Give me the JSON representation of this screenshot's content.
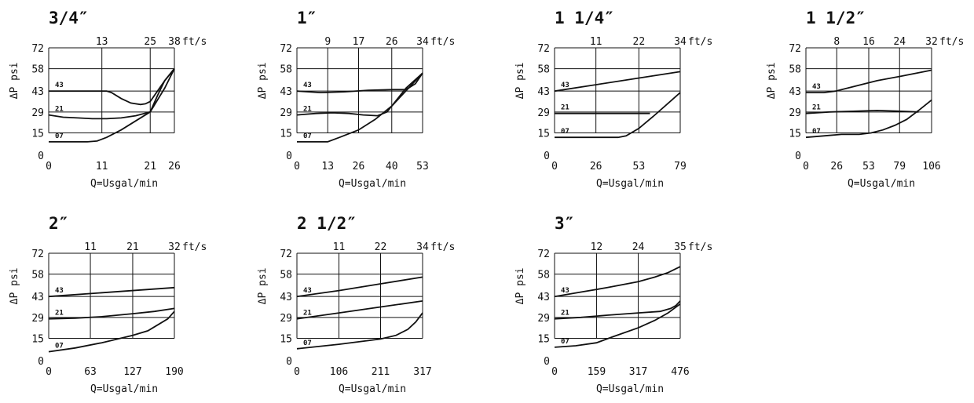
{
  "chart_data": [
    {
      "type": "line",
      "title": "3/4″",
      "xlabel": "Q=Usgal/min",
      "ylabel": "ΔP psi",
      "x_ticks": [
        "0",
        "11",
        "21",
        "26"
      ],
      "x_values": [
        0,
        11,
        21,
        26
      ],
      "top_ticks": [
        "13",
        "25",
        "38"
      ],
      "top_unit": "ft/s",
      "y_ticks": [
        "0",
        "15",
        "29",
        "43",
        "58",
        "72"
      ],
      "xlim": [
        0,
        26
      ],
      "ylim": [
        0,
        72
      ],
      "series": [
        {
          "name": "43",
          "x": [
            0,
            4,
            8,
            12,
            13,
            15,
            17,
            19,
            20,
            21,
            22.5,
            24,
            26
          ],
          "y": [
            43,
            43,
            43,
            43,
            42,
            38,
            35,
            34,
            34.5,
            36,
            43,
            50,
            58
          ]
        },
        {
          "name": "21",
          "x": [
            0,
            3,
            6,
            9,
            12,
            15,
            18,
            21,
            22.5,
            24,
            26
          ],
          "y": [
            27,
            25.5,
            25,
            24.5,
            24.5,
            25,
            26.5,
            29,
            40,
            50,
            58
          ]
        },
        {
          "name": "07",
          "x": [
            0,
            4,
            8,
            10,
            12,
            15,
            18,
            21,
            24,
            26
          ],
          "y": [
            9,
            9,
            9,
            9.5,
            12,
            17,
            23,
            29,
            45,
            58
          ]
        }
      ]
    },
    {
      "type": "line",
      "title": "1″",
      "xlabel": "Q=Usgal/min",
      "ylabel": "ΔP psi",
      "x_ticks": [
        "0",
        "13",
        "26",
        "40",
        "53"
      ],
      "x_values": [
        0,
        13,
        26,
        40,
        53
      ],
      "top_ticks": [
        "9",
        "17",
        "26",
        "34"
      ],
      "top_unit": "ft/s",
      "y_ticks": [
        "0",
        "15",
        "29",
        "43",
        "58",
        "72"
      ],
      "xlim": [
        0,
        53
      ],
      "ylim": [
        0,
        72
      ],
      "series": [
        {
          "name": "43",
          "x": [
            0,
            10,
            20,
            30,
            40,
            46,
            50,
            53
          ],
          "y": [
            43,
            42,
            42.5,
            43.5,
            44,
            44,
            48,
            55
          ]
        },
        {
          "name": "21",
          "x": [
            0,
            8,
            15,
            22,
            28,
            34,
            38,
            46,
            53
          ],
          "y": [
            27,
            28,
            28.5,
            28,
            27,
            26.5,
            29,
            45,
            55
          ]
        },
        {
          "name": "07",
          "x": [
            0,
            5,
            10,
            13,
            18,
            26,
            33,
            40,
            53
          ],
          "y": [
            9,
            9,
            9,
            9,
            12,
            17,
            24,
            33,
            55
          ]
        }
      ]
    },
    {
      "type": "line",
      "title": "1 1/4″",
      "xlabel": "Q=Usgal/min",
      "ylabel": "ΔP psi",
      "x_ticks": [
        "0",
        "26",
        "53",
        "79"
      ],
      "x_values": [
        0,
        26,
        53,
        79
      ],
      "top_ticks": [
        "11",
        "22",
        "34"
      ],
      "top_unit": "ft/s",
      "y_ticks": [
        "0",
        "15",
        "29",
        "43",
        "58",
        "72"
      ],
      "xlim": [
        0,
        79
      ],
      "ylim": [
        0,
        72
      ],
      "series": [
        {
          "name": "43",
          "x": [
            0,
            79
          ],
          "y": [
            43,
            56
          ]
        },
        {
          "name": "21",
          "x": [
            0,
            30,
            60
          ],
          "y": [
            28,
            28,
            28
          ]
        },
        {
          "name": "07",
          "x": [
            0,
            20,
            40,
            45,
            53,
            62,
            79
          ],
          "y": [
            12,
            12,
            12,
            13,
            18,
            26,
            42
          ]
        }
      ]
    },
    {
      "type": "line",
      "title": "1 1/2″",
      "xlabel": "Q=Usgal/min",
      "ylabel": "ΔP psi",
      "x_ticks": [
        "0",
        "26",
        "53",
        "79",
        "106"
      ],
      "x_values": [
        0,
        26,
        53,
        79,
        106
      ],
      "top_ticks": [
        "8",
        "16",
        "24",
        "32"
      ],
      "top_unit": "ft/s",
      "y_ticks": [
        "0",
        "15",
        "29",
        "43",
        "58",
        "72"
      ],
      "xlim": [
        0,
        106
      ],
      "ylim": [
        0,
        72
      ],
      "series": [
        {
          "name": "43",
          "x": [
            0,
            15,
            25,
            40,
            60,
            80,
            106
          ],
          "y": [
            42,
            42,
            43,
            46,
            50,
            53,
            57
          ]
        },
        {
          "name": "21",
          "x": [
            0,
            20,
            40,
            60,
            80,
            95
          ],
          "y": [
            28,
            29,
            29.5,
            30,
            29.5,
            29
          ]
        },
        {
          "name": "07",
          "x": [
            0,
            15,
            30,
            45,
            55,
            65,
            75,
            85,
            95,
            106
          ],
          "y": [
            12,
            13,
            14,
            14,
            15,
            17,
            20,
            24,
            30,
            37
          ]
        }
      ]
    },
    {
      "type": "line",
      "title": "2″",
      "xlabel": "Q=Usgal/min",
      "ylabel": "ΔP psi",
      "x_ticks": [
        "0",
        "63",
        "127",
        "190"
      ],
      "x_values": [
        0,
        63,
        127,
        190
      ],
      "top_ticks": [
        "11",
        "21",
        "32"
      ],
      "top_unit": "ft/s",
      "y_ticks": [
        "0",
        "15",
        "29",
        "43",
        "58",
        "72"
      ],
      "xlim": [
        0,
        190
      ],
      "ylim": [
        0,
        72
      ],
      "series": [
        {
          "name": "43",
          "x": [
            0,
            190
          ],
          "y": [
            43,
            49
          ]
        },
        {
          "name": "21",
          "x": [
            0,
            40,
            80,
            127,
            160,
            190
          ],
          "y": [
            28,
            28.5,
            29.5,
            31.5,
            33,
            35
          ]
        },
        {
          "name": "07",
          "x": [
            0,
            40,
            80,
            127,
            150,
            165,
            180,
            190
          ],
          "y": [
            6,
            8.5,
            12,
            17,
            20,
            24,
            28,
            33
          ]
        }
      ]
    },
    {
      "type": "line",
      "title": "2 1/2″",
      "xlabel": "Q=Usgal/min",
      "ylabel": "ΔP psi",
      "x_ticks": [
        "0",
        "106",
        "211",
        "317"
      ],
      "x_values": [
        0,
        106,
        211,
        317
      ],
      "top_ticks": [
        "11",
        "22",
        "34"
      ],
      "top_unit": "ft/s",
      "y_ticks": [
        "0",
        "15",
        "29",
        "43",
        "58",
        "72"
      ],
      "xlim": [
        0,
        317
      ],
      "ylim": [
        0,
        72
      ],
      "series": [
        {
          "name": "43",
          "x": [
            0,
            106,
            211,
            317
          ],
          "y": [
            43,
            47,
            51.5,
            56
          ]
        },
        {
          "name": "21",
          "x": [
            0,
            106,
            211,
            317
          ],
          "y": [
            28,
            32,
            36,
            40
          ]
        },
        {
          "name": "07",
          "x": [
            0,
            106,
            211,
            250,
            280,
            300,
            317
          ],
          "y": [
            8,
            11,
            14.5,
            17,
            21,
            26,
            32
          ]
        }
      ]
    },
    {
      "type": "line",
      "title": "3″",
      "xlabel": "Q=Usgal/min",
      "ylabel": "ΔP psi",
      "x_ticks": [
        "0",
        "159",
        "317",
        "476"
      ],
      "x_values": [
        0,
        159,
        317,
        476
      ],
      "top_ticks": [
        "12",
        "24",
        "35"
      ],
      "top_unit": "ft/s",
      "y_ticks": [
        "0",
        "15",
        "29",
        "43",
        "58",
        "72"
      ],
      "xlim": [
        0,
        476
      ],
      "ylim": [
        0,
        72
      ],
      "series": [
        {
          "name": "43",
          "x": [
            0,
            100,
            200,
            317,
            380,
            430,
            476
          ],
          "y": [
            43,
            46,
            49,
            53,
            56,
            59,
            63
          ]
        },
        {
          "name": "21",
          "x": [
            0,
            100,
            200,
            317,
            400,
            440,
            460,
            476
          ],
          "y": [
            28,
            29,
            30.5,
            32,
            33,
            35,
            37,
            40
          ]
        },
        {
          "name": "07",
          "x": [
            0,
            80,
            159,
            220,
            317,
            380,
            430,
            476
          ],
          "y": [
            9,
            10,
            12,
            16,
            22,
            27,
            32,
            38
          ]
        }
      ]
    }
  ]
}
